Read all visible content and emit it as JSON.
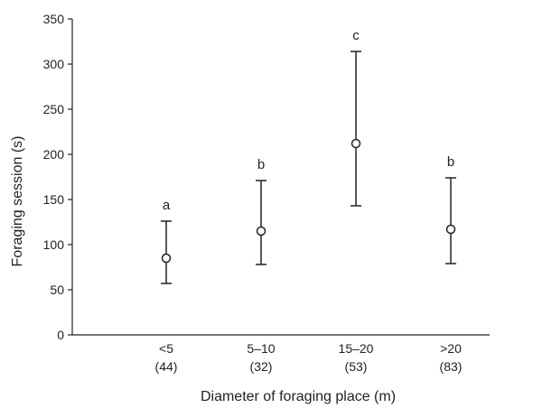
{
  "chart_data": {
    "type": "scatter",
    "xlabel": "Diameter of foraging place (m)",
    "ylabel": "Foraging session (s)",
    "ylim": [
      0,
      350
    ],
    "yticks": [
      0,
      50,
      100,
      150,
      200,
      250,
      300,
      350
    ],
    "grid": false,
    "legend": "none",
    "categories": [
      "<5",
      "5–10",
      "15–20",
      ">20"
    ],
    "sample_sizes": [
      "(44)",
      "(32)",
      "(53)",
      "(83)"
    ],
    "series": [
      {
        "values": [
          85,
          115,
          212,
          117
        ],
        "error_low": [
          57,
          78,
          143,
          79
        ],
        "error_high": [
          126,
          171,
          314,
          174
        ],
        "significance_labels": [
          "a",
          "b",
          "c",
          "b"
        ]
      }
    ],
    "colors": {
      "marker_fill": "#ffffff",
      "stroke": "#222222"
    }
  }
}
